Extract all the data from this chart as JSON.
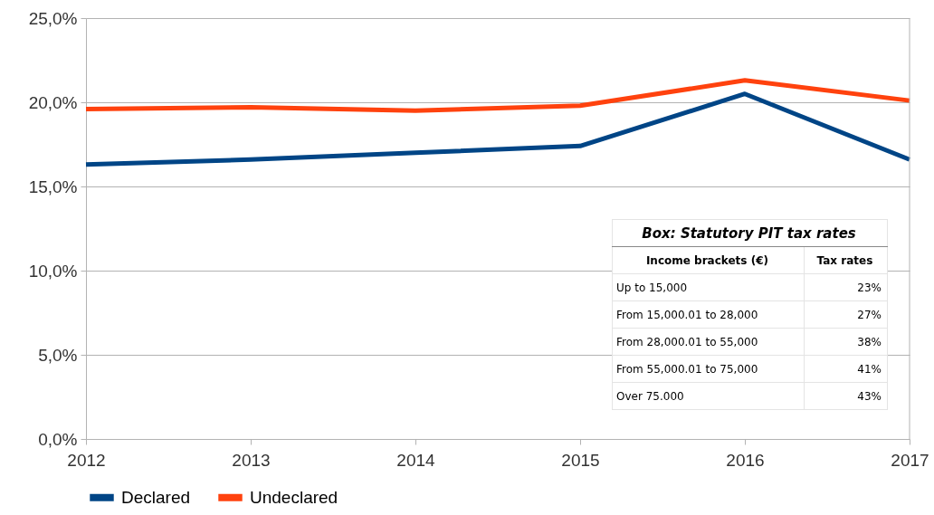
{
  "chart_data": {
    "type": "line",
    "x": [
      2012,
      2013,
      2014,
      2015,
      2016,
      2017
    ],
    "series": [
      {
        "name": "Declared",
        "color": "#004586",
        "values": [
          16.3,
          16.6,
          17.0,
          17.4,
          20.5,
          16.6
        ]
      },
      {
        "name": "Undeclared",
        "color": "#ff420e",
        "values": [
          19.6,
          19.7,
          19.5,
          19.8,
          21.3,
          20.1
        ]
      }
    ],
    "xlim": [
      2012,
      2017
    ],
    "xticks": [
      2012,
      2013,
      2014,
      2015,
      2016,
      2017
    ],
    "ylim": [
      0,
      25
    ],
    "yticks": [
      {
        "value": 0,
        "label": "0,0%"
      },
      {
        "value": 5,
        "label": "5,0%"
      },
      {
        "value": 10,
        "label": "10,0%"
      },
      {
        "value": 15,
        "label": "15,0%"
      },
      {
        "value": 20,
        "label": "20,0%"
      },
      {
        "value": 25,
        "label": "25,0%"
      }
    ],
    "grid": "y",
    "legend": "bottom",
    "marker": "none",
    "line_style": "solid",
    "annotations": [
      "Box: Statutory PIT tax rates",
      "Income brackets (€)",
      "Tax rates",
      "Up to 15,000",
      "23%",
      "From 15,000.01 to 28,000",
      "27%",
      "From 28,000.01 to 55,000",
      "38%",
      "From 55,000.01 to 75,000",
      "41%",
      "Over 75.000",
      "43%"
    ]
  }
}
